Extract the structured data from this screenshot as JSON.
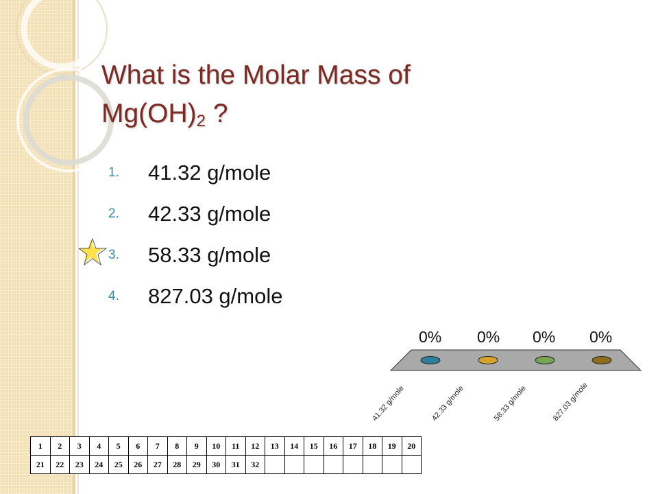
{
  "slide": {
    "title_main": "What is the Molar Mass of",
    "title_formula": "Mg(OH)",
    "title_sub": "2",
    "title_end": " ?"
  },
  "options": [
    {
      "num": "1.",
      "text": "41.32 g/mole"
    },
    {
      "num": "2.",
      "text": "42.33 g/mole"
    },
    {
      "num": "3.",
      "text": "58.33 g/mole"
    },
    {
      "num": "4.",
      "text": "827.03 g/mole"
    }
  ],
  "correct_marker": "star-icon",
  "chart_data": {
    "type": "bar",
    "categories": [
      "41.32 g/mole",
      "42.33 g/mole",
      "58.33 g/mole",
      "827.03 g/mole"
    ],
    "values": [
      0,
      0,
      0,
      0
    ],
    "value_labels": [
      "0%",
      "0%",
      "0%",
      "0%"
    ],
    "colors": [
      "#2e7d9c",
      "#d7a32c",
      "#76a654",
      "#8a6d1d"
    ]
  },
  "grid": {
    "row1": [
      "1",
      "2",
      "3",
      "4",
      "5",
      "6",
      "7",
      "8",
      "9",
      "10",
      "11",
      "12",
      "13",
      "14",
      "15",
      "16",
      "17",
      "18",
      "19",
      "20"
    ],
    "row2": [
      "21",
      "22",
      "23",
      "24",
      "25",
      "26",
      "27",
      "28",
      "29",
      "30",
      "31",
      "32",
      "",
      "",
      "",
      "",
      "",
      "",
      "",
      ""
    ]
  },
  "colors": {
    "title": "#7a2a22",
    "number": "#3b8aa5",
    "band": "#f3dfb2"
  }
}
